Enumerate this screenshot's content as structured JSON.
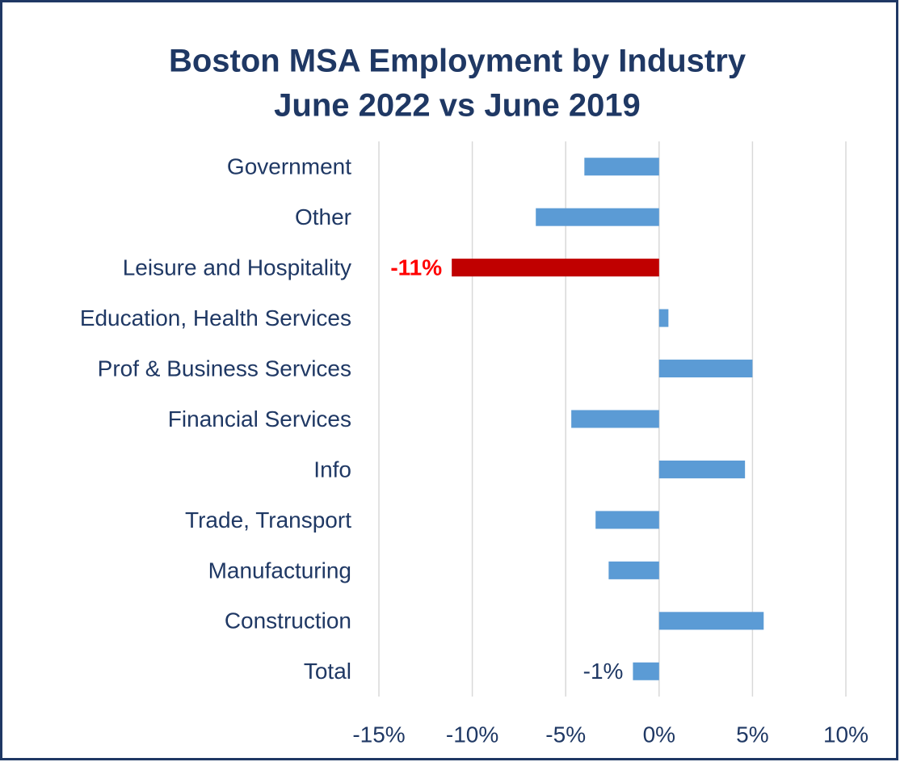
{
  "chart_data": {
    "type": "barh",
    "title": "Boston MSA Employment by Industry",
    "subtitle": "June 2022 vs June 2019",
    "categories": [
      "Government",
      "Other",
      "Leisure and Hospitality",
      "Education, Health Services",
      "Prof & Business Services",
      "Financial Services",
      "Info",
      "Trade, Transport",
      "Manufacturing",
      "Construction",
      "Total"
    ],
    "values": [
      -4.0,
      -6.6,
      -11.1,
      0.5,
      5.0,
      -4.7,
      4.6,
      -3.4,
      -2.7,
      5.6,
      -1.4
    ],
    "value_labels": [
      null,
      null,
      "-11%",
      null,
      null,
      null,
      null,
      null,
      null,
      null,
      "-1%"
    ],
    "colors": [
      "#5b9bd5",
      "#5b9bd5",
      "#c00000",
      "#5b9bd5",
      "#5b9bd5",
      "#5b9bd5",
      "#5b9bd5",
      "#5b9bd5",
      "#5b9bd5",
      "#5b9bd5",
      "#5b9bd5"
    ],
    "value_label_colors": [
      null,
      null,
      "#ff0000",
      null,
      null,
      null,
      null,
      null,
      null,
      null,
      "#1f3864"
    ],
    "xlim": [
      -15,
      10
    ],
    "xticks": [
      {
        "value": -15,
        "label": "-15%"
      },
      {
        "value": -10,
        "label": "-10%"
      },
      {
        "value": -5,
        "label": "-5%"
      },
      {
        "value": 0,
        "label": "0%"
      },
      {
        "value": 5,
        "label": "5%"
      },
      {
        "value": 10,
        "label": "10%"
      }
    ],
    "grid": true
  }
}
